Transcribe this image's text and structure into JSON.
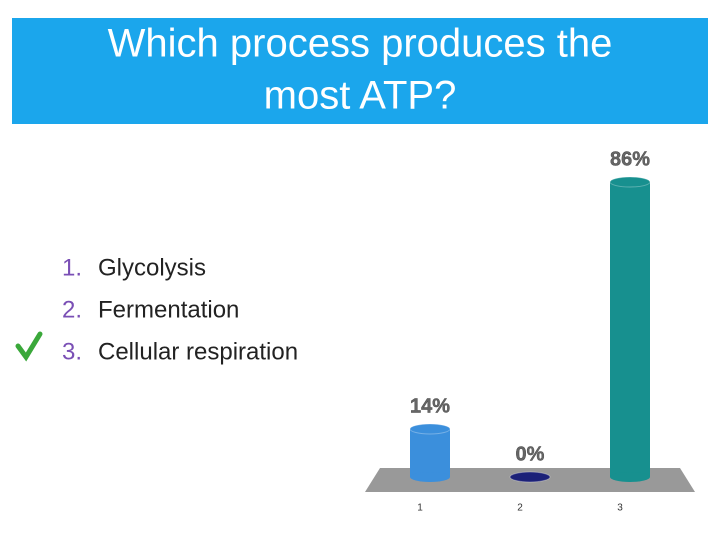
{
  "title": [
    "Which process produces the",
    "most ATP?"
  ],
  "options": [
    {
      "number": "1.",
      "text": "Glycolysis"
    },
    {
      "number": "2.",
      "text": "Fermentation"
    },
    {
      "number": "3.",
      "text": "Cellular respiration"
    }
  ],
  "chart_data": {
    "type": "bar",
    "categories": [
      "1",
      "2",
      "3"
    ],
    "values": [
      14,
      0,
      86
    ],
    "value_labels": [
      "14%",
      "0%",
      "86%"
    ],
    "colors": [
      "#3b8fdc",
      "#1c2178",
      "#17908f"
    ]
  }
}
